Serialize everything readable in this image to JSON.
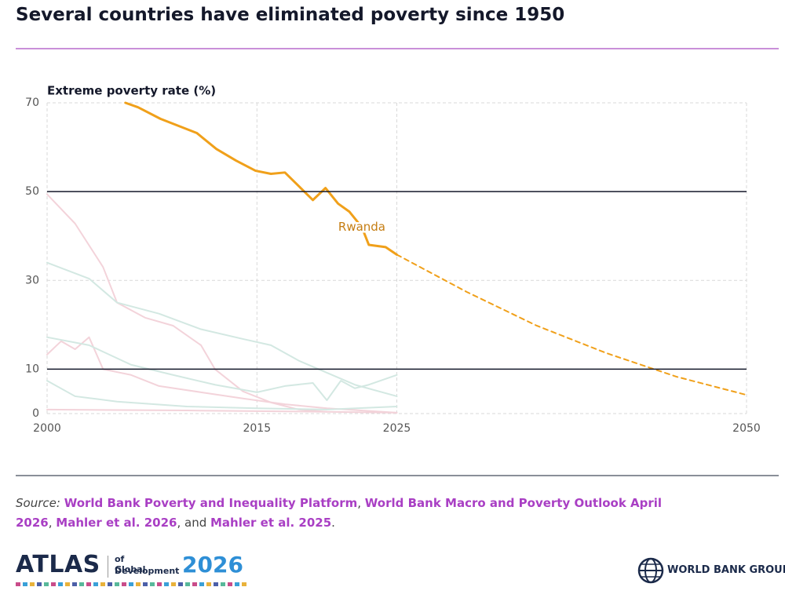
{
  "chart_data": {
    "type": "line",
    "title": "Several countries have eliminated poverty since 1950",
    "y_label": "Extreme poverty rate (%)",
    "xlim": [
      2000,
      2050
    ],
    "xticks": [
      2000,
      2015,
      2025,
      2050
    ],
    "ylim": [
      0,
      70
    ],
    "yticks": [
      0,
      10,
      30,
      50,
      70
    ],
    "grid": true,
    "reference_lines": [
      10,
      50
    ],
    "series": [
      {
        "name": "Rwanda",
        "color": "#f0a01a",
        "style": "solid",
        "width": 3,
        "x": [
          2005.6,
          2006.5,
          2008.1,
          2010.7,
          2012.1,
          2013.5,
          2014.9,
          2016,
          2017,
          2018,
          2019,
          2019.9,
          2020.8,
          2021.6,
          2022.5,
          2023,
          2024.2,
          2025
        ],
        "values": [
          70,
          69,
          66.4,
          63.2,
          59.6,
          57,
          54.7,
          54,
          54.3,
          51.2,
          48.1,
          50.8,
          47.3,
          45.5,
          42,
          38,
          37.5,
          35.8
        ]
      },
      {
        "color": "#f0a01a",
        "style": "dashed",
        "width": 2,
        "x": [
          2025,
          2030,
          2035,
          2040,
          2045,
          2050
        ],
        "values": [
          35.8,
          27.4,
          19.8,
          13.6,
          8.3,
          4.2
        ]
      },
      {
        "color": "#f3d3da",
        "style": "solid",
        "width": 2,
        "x": [
          2000,
          2002,
          2004,
          2005,
          2007,
          2009,
          2011,
          2012,
          2014,
          2016,
          2018,
          2020
        ],
        "values": [
          49.4,
          42.8,
          33,
          25,
          21.6,
          19.8,
          15.4,
          10,
          5,
          2.5,
          0.9,
          0.4
        ]
      },
      {
        "color": "#d3e8e2",
        "style": "solid",
        "width": 2,
        "x": [
          2000,
          2003,
          2005,
          2008,
          2011,
          2014,
          2016,
          2018,
          2020,
          2022,
          2025
        ],
        "values": [
          34,
          30.4,
          25,
          22.5,
          19,
          16.8,
          15.4,
          11.9,
          9.2,
          6.5,
          3.9
        ]
      },
      {
        "color": "#f3d3da",
        "style": "solid",
        "width": 2,
        "x": [
          2000,
          2001,
          2002,
          2003,
          2004,
          2006,
          2008,
          2011,
          2014,
          2017,
          2020,
          2025
        ],
        "values": [
          13.3,
          16.3,
          14.5,
          17.2,
          10,
          8.7,
          6.2,
          4.8,
          3.4,
          2.1,
          1.2,
          0.2
        ]
      },
      {
        "color": "#d3e8e2",
        "style": "solid",
        "width": 2,
        "x": [
          2000,
          2003,
          2006,
          2009,
          2012,
          2015,
          2017,
          2019,
          2020,
          2021,
          2022,
          2023,
          2025
        ],
        "values": [
          17.2,
          15.4,
          11,
          8.7,
          6.5,
          4.8,
          6.2,
          6.9,
          3,
          7.4,
          5.7,
          6.5,
          8.7
        ]
      },
      {
        "color": "#d3e8e2",
        "style": "solid",
        "width": 2,
        "x": [
          2000,
          2002,
          2005,
          2010,
          2015,
          2020,
          2025
        ],
        "values": [
          7.4,
          3.9,
          2.7,
          1.6,
          1.2,
          0.9,
          1.6
        ]
      },
      {
        "color": "#f3d3da",
        "style": "solid",
        "width": 2,
        "x": [
          2000,
          2010,
          2020,
          2025
        ],
        "values": [
          0.9,
          0.7,
          0.4,
          0.2
        ]
      }
    ]
  },
  "source": {
    "label": "Source:",
    "parts": [
      {
        "text": " ",
        "link": false
      },
      {
        "text": "World Bank Poverty and Inequality Platform",
        "link": true
      },
      {
        "text": ", ",
        "link": false
      },
      {
        "text": "World Bank Macro and Poverty Outlook April 2026",
        "link": true
      },
      {
        "text": ", ",
        "link": false
      },
      {
        "text": "Mahler et al. 2026",
        "link": true
      },
      {
        "text": ", and ",
        "link": false
      },
      {
        "text": "Mahler et al. 2025",
        "link": true
      },
      {
        "text": ".",
        "link": false
      }
    ]
  },
  "logos": {
    "atlas": "ATLAS",
    "atlas_sub1": "of Global",
    "atlas_sub2": "Development",
    "atlas_year": "2026",
    "wbg": "WORLD BANK GROUP"
  }
}
